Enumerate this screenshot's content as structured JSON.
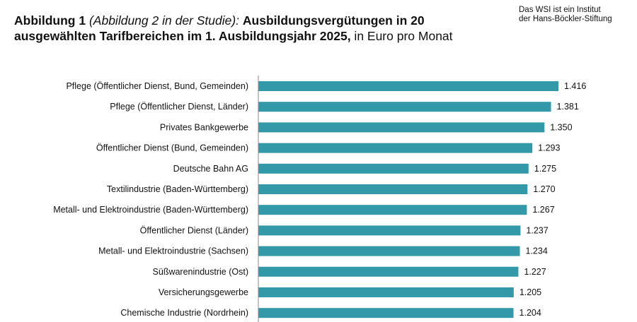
{
  "title": {
    "part1": "Abbildung 1 ",
    "part2": "(Abbildung 2 in der Studie): ",
    "part3": "Ausbildungsvergütungen in 20 ausgewählten Tarifbereichen im 1. Ausbildungsjahr 2025,",
    "part4": " in Euro pro Monat"
  },
  "source_note": "Das WSI ist ein Institut\nder Hans-Böckler-Stiftung",
  "chart_data": {
    "type": "bar",
    "orientation": "horizontal",
    "categories": [
      "Pflege (Öffentlicher Dienst, Bund, Gemeinden)",
      "Pflege (Öffentlicher Dienst, Länder)",
      "Privates Bankgewerbe",
      "Öffentlicher Dienst (Bund, Gemeinden)",
      "Deutsche Bahn AG",
      "Textilindustrie (Baden-Württemberg)",
      "Metall- und Elektroindustrie (Baden-Württemberg)",
      "Öffentlicher Dienst (Länder)",
      "Metall- und Elektroindustrie (Sachsen)",
      "Süßwarenindustrie (Ost)",
      "Versicherungsgewerbe",
      "Chemische Industrie (Nordrhein)"
    ],
    "values": [
      1416,
      1381,
      1350,
      1293,
      1275,
      1270,
      1267,
      1237,
      1234,
      1227,
      1205,
      1204
    ],
    "value_labels": [
      "1.416",
      "1.381",
      "1.350",
      "1.293",
      "1.275",
      "1.270",
      "1.267",
      "1.237",
      "1.234",
      "1.227",
      "1.205",
      "1.204"
    ],
    "bar_color": "#3399a8",
    "axis_color": "#888888",
    "xlim": [
      0,
      1500
    ],
    "grid": false
  }
}
